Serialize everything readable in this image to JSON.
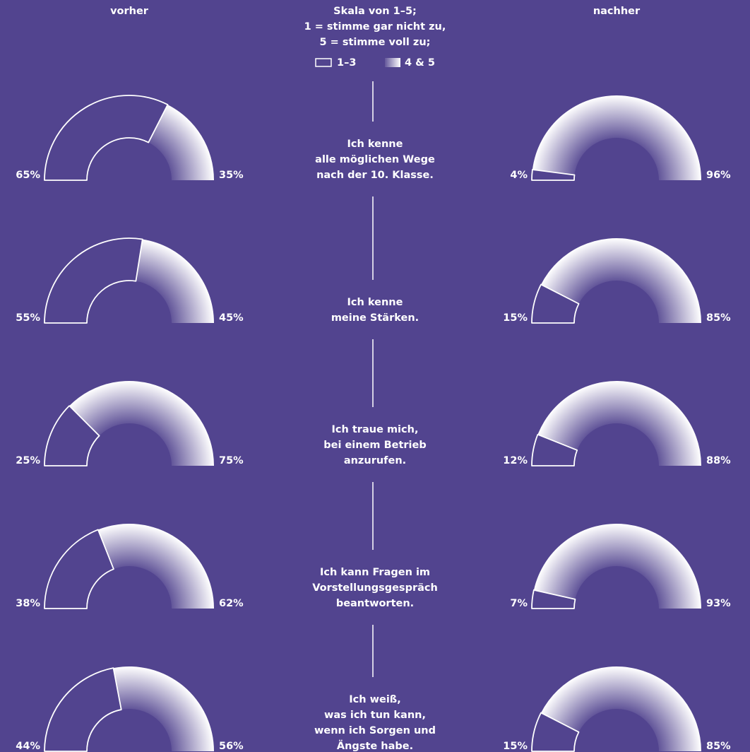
{
  "chart_data": {
    "type": "half-donut",
    "columns": [
      "vorher",
      "nachher"
    ],
    "scale_note": [
      "Skala von 1–5;",
      "1 = stimme gar nicht zu,",
      "5 = stimme voll zu;"
    ],
    "legend": [
      "1–3",
      "4 & 5"
    ],
    "categories": [
      [
        "Ich kenne",
        "alle möglichen Wege",
        "nach der 10. Klasse."
      ],
      [
        "Ich kenne",
        "meine Stärken."
      ],
      [
        "Ich traue mich,",
        "bei einem Betrieb",
        "anzurufen."
      ],
      [
        "Ich kann Fragen im",
        "Vorstellungsgespräch",
        "beantworten."
      ],
      [
        "Ich weiß,",
        "was ich tun kann,",
        "wenn ich Sorgen und",
        "Ängste habe."
      ]
    ],
    "series": [
      {
        "name": "vorher",
        "values": [
          [
            65,
            35
          ],
          [
            55,
            45
          ],
          [
            25,
            75
          ],
          [
            38,
            62
          ],
          [
            44,
            56
          ]
        ],
        "value_labels": [
          [
            "65%",
            "35%"
          ],
          [
            "55%",
            "45%"
          ],
          [
            "25%",
            "75%"
          ],
          [
            "38%",
            "62%"
          ],
          [
            "44%",
            "56%"
          ]
        ]
      },
      {
        "name": "nachher",
        "values": [
          [
            4,
            96
          ],
          [
            15,
            85
          ],
          [
            12,
            88
          ],
          [
            7,
            93
          ],
          [
            15,
            85
          ]
        ],
        "value_labels": [
          [
            "4%",
            "96%"
          ],
          [
            "15%",
            "85%"
          ],
          [
            "12%",
            "88%"
          ],
          [
            "7%",
            "93%"
          ],
          [
            "15%",
            "85%"
          ]
        ]
      }
    ]
  }
}
